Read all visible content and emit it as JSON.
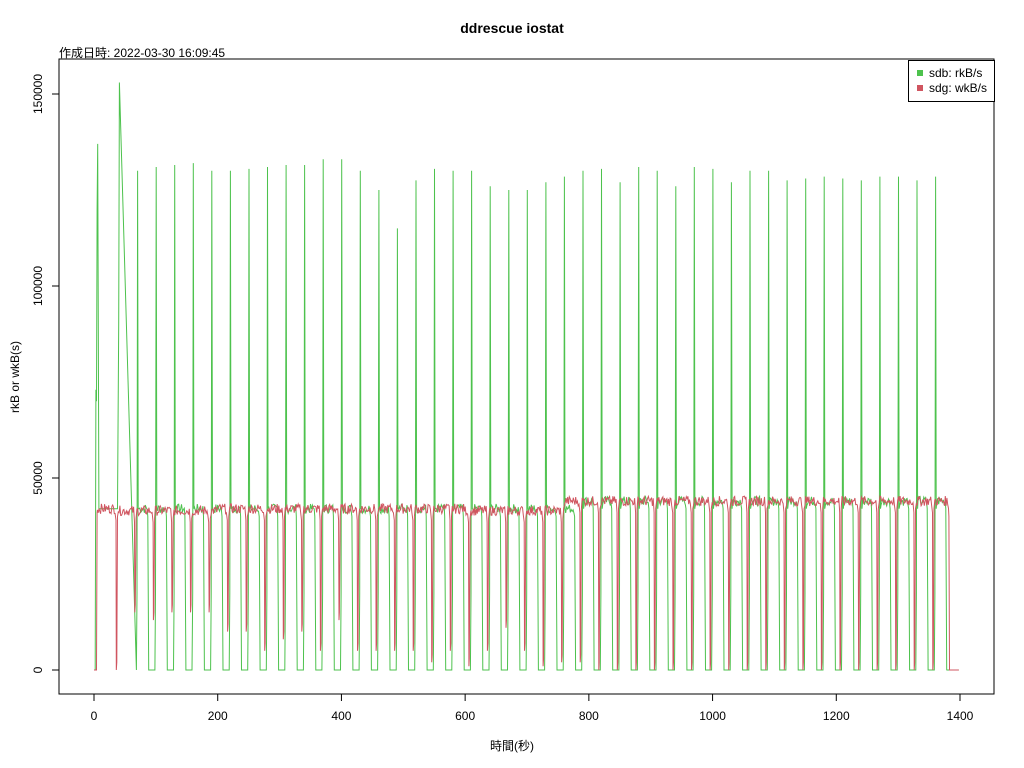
{
  "chart_data": {
    "type": "line",
    "title": "ddrescue iostat",
    "subtitle": "作成日時: 2022-03-30 16:09:45",
    "xlabel": "時間(秒)",
    "ylabel": "rkB or wkB(s)",
    "xlim": [
      0,
      1400
    ],
    "ylim": [
      0,
      150000
    ],
    "x_ticks": [
      0,
      200,
      400,
      600,
      800,
      1000,
      1200,
      1400
    ],
    "y_ticks": [
      0,
      50000,
      100000,
      150000
    ],
    "x_tick_labels": [
      "0",
      "200",
      "400",
      "600",
      "800",
      "1000",
      "1200",
      "1400"
    ],
    "y_tick_labels": [
      "0",
      "50000",
      "100000",
      "150000"
    ],
    "grid": false,
    "legend_position": "top-right",
    "series": [
      {
        "name": "sdb: rkB/s",
        "color": "#4dc24d",
        "points": [
          [
            0,
            0
          ],
          [
            2,
            0
          ],
          [
            3,
            73000
          ],
          [
            4,
            70000
          ],
          [
            5,
            120000
          ],
          [
            6,
            137000
          ],
          [
            8,
            42000
          ],
          [
            38,
            42000
          ],
          [
            40,
            90000
          ],
          [
            41,
            153000
          ],
          [
            43,
            0
          ],
          [
            1378,
            0
          ],
          [
            1398,
            0
          ]
        ],
        "spikes": [
          [
            71,
            130000
          ],
          [
            101,
            131000
          ],
          [
            131,
            131500
          ],
          [
            161,
            132000
          ],
          [
            191,
            130000
          ],
          [
            221,
            130000
          ],
          [
            251,
            130500
          ],
          [
            281,
            131000
          ],
          [
            311,
            131500
          ],
          [
            341,
            131500
          ],
          [
            371,
            133000
          ],
          [
            401,
            133000
          ],
          [
            431,
            130000
          ],
          [
            461,
            125000
          ],
          [
            491,
            115000
          ],
          [
            521,
            127500
          ],
          [
            551,
            130500
          ],
          [
            581,
            130000
          ],
          [
            611,
            130000
          ],
          [
            641,
            126000
          ],
          [
            671,
            125000
          ],
          [
            701,
            125000
          ],
          [
            731,
            127000
          ],
          [
            761,
            128500
          ],
          [
            791,
            130000
          ],
          [
            821,
            130500
          ],
          [
            851,
            127000
          ],
          [
            881,
            131000
          ],
          [
            911,
            130000
          ],
          [
            941,
            126000
          ],
          [
            971,
            131000
          ],
          [
            1001,
            130500
          ],
          [
            1031,
            127000
          ],
          [
            1061,
            130000
          ],
          [
            1091,
            130000
          ],
          [
            1121,
            127500
          ],
          [
            1151,
            128000
          ],
          [
            1181,
            128500
          ],
          [
            1211,
            128000
          ],
          [
            1241,
            127500
          ],
          [
            1271,
            128500
          ],
          [
            1301,
            128500
          ],
          [
            1331,
            127500
          ],
          [
            1361,
            128500
          ]
        ]
      },
      {
        "name": "sdg: wkB/s",
        "color": "#d05560",
        "base_segments": [
          [
            5,
            40,
            42000
          ],
          [
            40,
            200,
            41500
          ],
          [
            200,
            380,
            42000
          ],
          [
            380,
            600,
            42000
          ],
          [
            600,
            760,
            41500
          ],
          [
            760,
            900,
            44000
          ],
          [
            900,
            1380,
            44000
          ]
        ],
        "end_x": 1382,
        "dips": [
          [
            36,
            0
          ],
          [
            66,
            15000
          ],
          [
            96,
            13000
          ],
          [
            126,
            15000
          ],
          [
            156,
            15000
          ],
          [
            186,
            15000
          ],
          [
            216,
            10000
          ],
          [
            246,
            10000
          ],
          [
            276,
            5000
          ],
          [
            306,
            8000
          ],
          [
            336,
            10000
          ],
          [
            366,
            5000
          ],
          [
            396,
            13000
          ],
          [
            426,
            5000
          ],
          [
            456,
            5000
          ],
          [
            486,
            5000
          ],
          [
            516,
            5000
          ],
          [
            546,
            2000
          ],
          [
            576,
            5000
          ],
          [
            606,
            1000
          ],
          [
            636,
            5000
          ],
          [
            666,
            11000
          ],
          [
            696,
            5000
          ],
          [
            726,
            1000
          ],
          [
            756,
            2000
          ],
          [
            786,
            2000
          ],
          [
            816,
            0
          ],
          [
            846,
            0
          ],
          [
            876,
            0
          ],
          [
            906,
            0
          ],
          [
            936,
            0
          ],
          [
            966,
            0
          ],
          [
            996,
            0
          ],
          [
            1026,
            0
          ],
          [
            1056,
            0
          ],
          [
            1086,
            0
          ],
          [
            1116,
            0
          ],
          [
            1146,
            0
          ],
          [
            1176,
            0
          ],
          [
            1206,
            0
          ],
          [
            1236,
            0
          ],
          [
            1266,
            0
          ],
          [
            1296,
            0
          ],
          [
            1326,
            0
          ],
          [
            1356,
            0
          ]
        ]
      }
    ]
  }
}
